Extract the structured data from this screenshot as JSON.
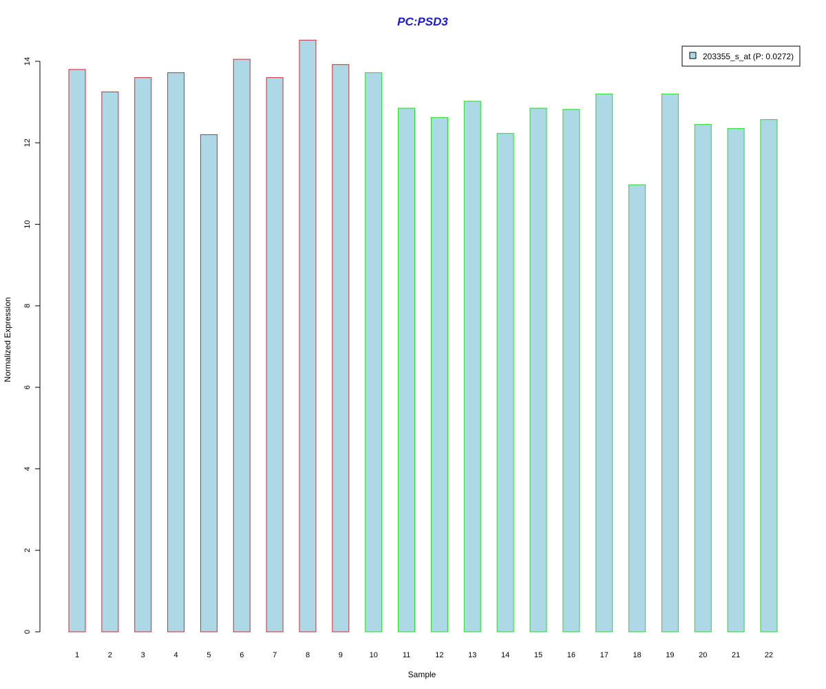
{
  "chart_data": {
    "type": "bar",
    "title": "PC:PSD3",
    "xlabel": "Sample",
    "ylabel": "Normalized Expression",
    "categories": [
      "1",
      "2",
      "3",
      "4",
      "5",
      "6",
      "7",
      "8",
      "9",
      "10",
      "11",
      "12",
      "13",
      "14",
      "15",
      "16",
      "17",
      "18",
      "19",
      "20",
      "21",
      "22"
    ],
    "series": [
      {
        "name": "203355_s_at (P: 0.0272)",
        "values": [
          13.8,
          13.25,
          13.6,
          13.72,
          12.2,
          14.05,
          13.6,
          14.52,
          13.92,
          13.72,
          12.85,
          12.62,
          13.02,
          12.23,
          12.85,
          12.82,
          13.2,
          10.97,
          13.2,
          12.45,
          12.35,
          12.57
        ]
      }
    ],
    "bar_border_colors": [
      "#d9232d",
      "#d9232d",
      "#d9232d",
      "#d9232d",
      "#d9232d",
      "#d9232d",
      "#d9232d",
      "#d9232d",
      "#d9232d",
      "#22dd22",
      "#22dd22",
      "#22dd22",
      "#22dd22",
      "#22dd22",
      "#22dd22",
      "#22dd22",
      "#22dd22",
      "#22dd22",
      "#22dd22",
      "#22dd22",
      "#22dd22",
      "#22dd22"
    ],
    "bar_fill_color": "#add8e6",
    "title_color": "#1a1ad6",
    "ylim": [
      0,
      14
    ],
    "yticks": [
      "0",
      "2",
      "4",
      "6",
      "8",
      "10",
      "12",
      "14"
    ],
    "grid": false,
    "legend_position": "top-right"
  }
}
